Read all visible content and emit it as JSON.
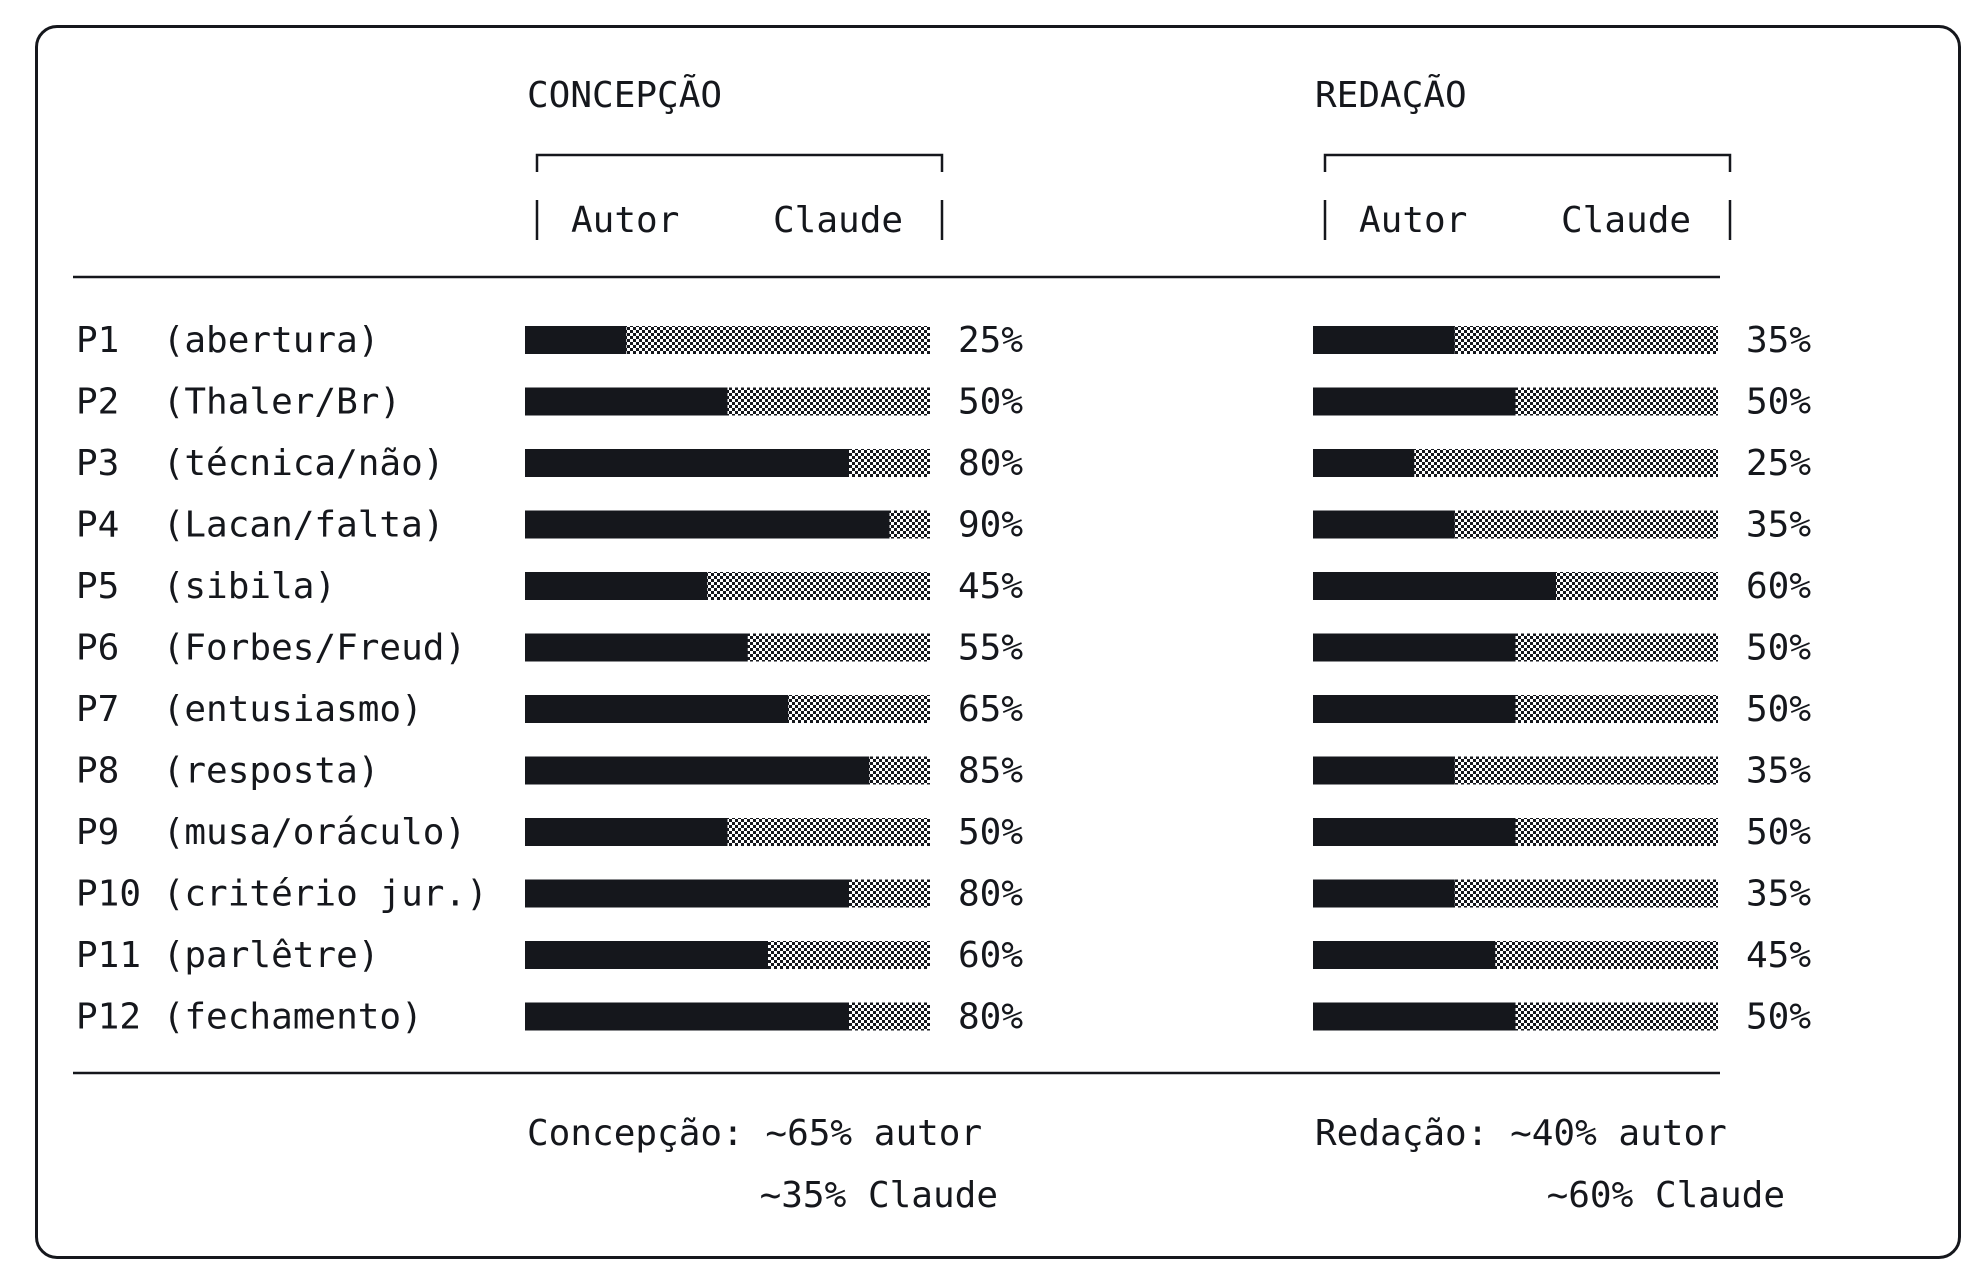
{
  "chart_data": {
    "type": "bar",
    "legend": [
      "Autor",
      "Claude"
    ],
    "groups": [
      {
        "title": "CONCEPÇÃO",
        "legend_left": "Autor",
        "legend_right": "Claude"
      },
      {
        "title": "REDAÇÃO",
        "legend_left": "Autor",
        "legend_right": "Claude"
      }
    ],
    "categories": [
      "P1  (abertura)",
      "P2  (Thaler/Br)",
      "P3  (técnica/não)",
      "P4  (Lacan/falta)",
      "P5  (sibila)",
      "P6  (Forbes/Freud)",
      "P7  (entusiasmo)",
      "P8  (resposta)",
      "P9  (musa/oráculo)",
      "P10 (critério jur.)",
      "P11 (parlêtre)",
      "P12 (fechamento)"
    ],
    "series": [
      {
        "name": "CONCEPÇÃO",
        "values": [
          25,
          50,
          80,
          90,
          45,
          55,
          65,
          85,
          50,
          80,
          60,
          80
        ]
      },
      {
        "name": "REDAÇÃO",
        "values": [
          35,
          50,
          25,
          35,
          60,
          50,
          50,
          35,
          50,
          35,
          45,
          50
        ]
      }
    ],
    "value_suffix": "%",
    "ylim": [
      0,
      100
    ],
    "summaries": [
      {
        "line1": "Concepção: ~65% autor",
        "line2": "~35% Claude"
      },
      {
        "line1": "Redação: ~40% autor",
        "line2": "~60% Claude"
      }
    ]
  },
  "colors": {
    "autor": "#15171c",
    "claude_dots": "#15171c",
    "background": "#ffffff"
  }
}
